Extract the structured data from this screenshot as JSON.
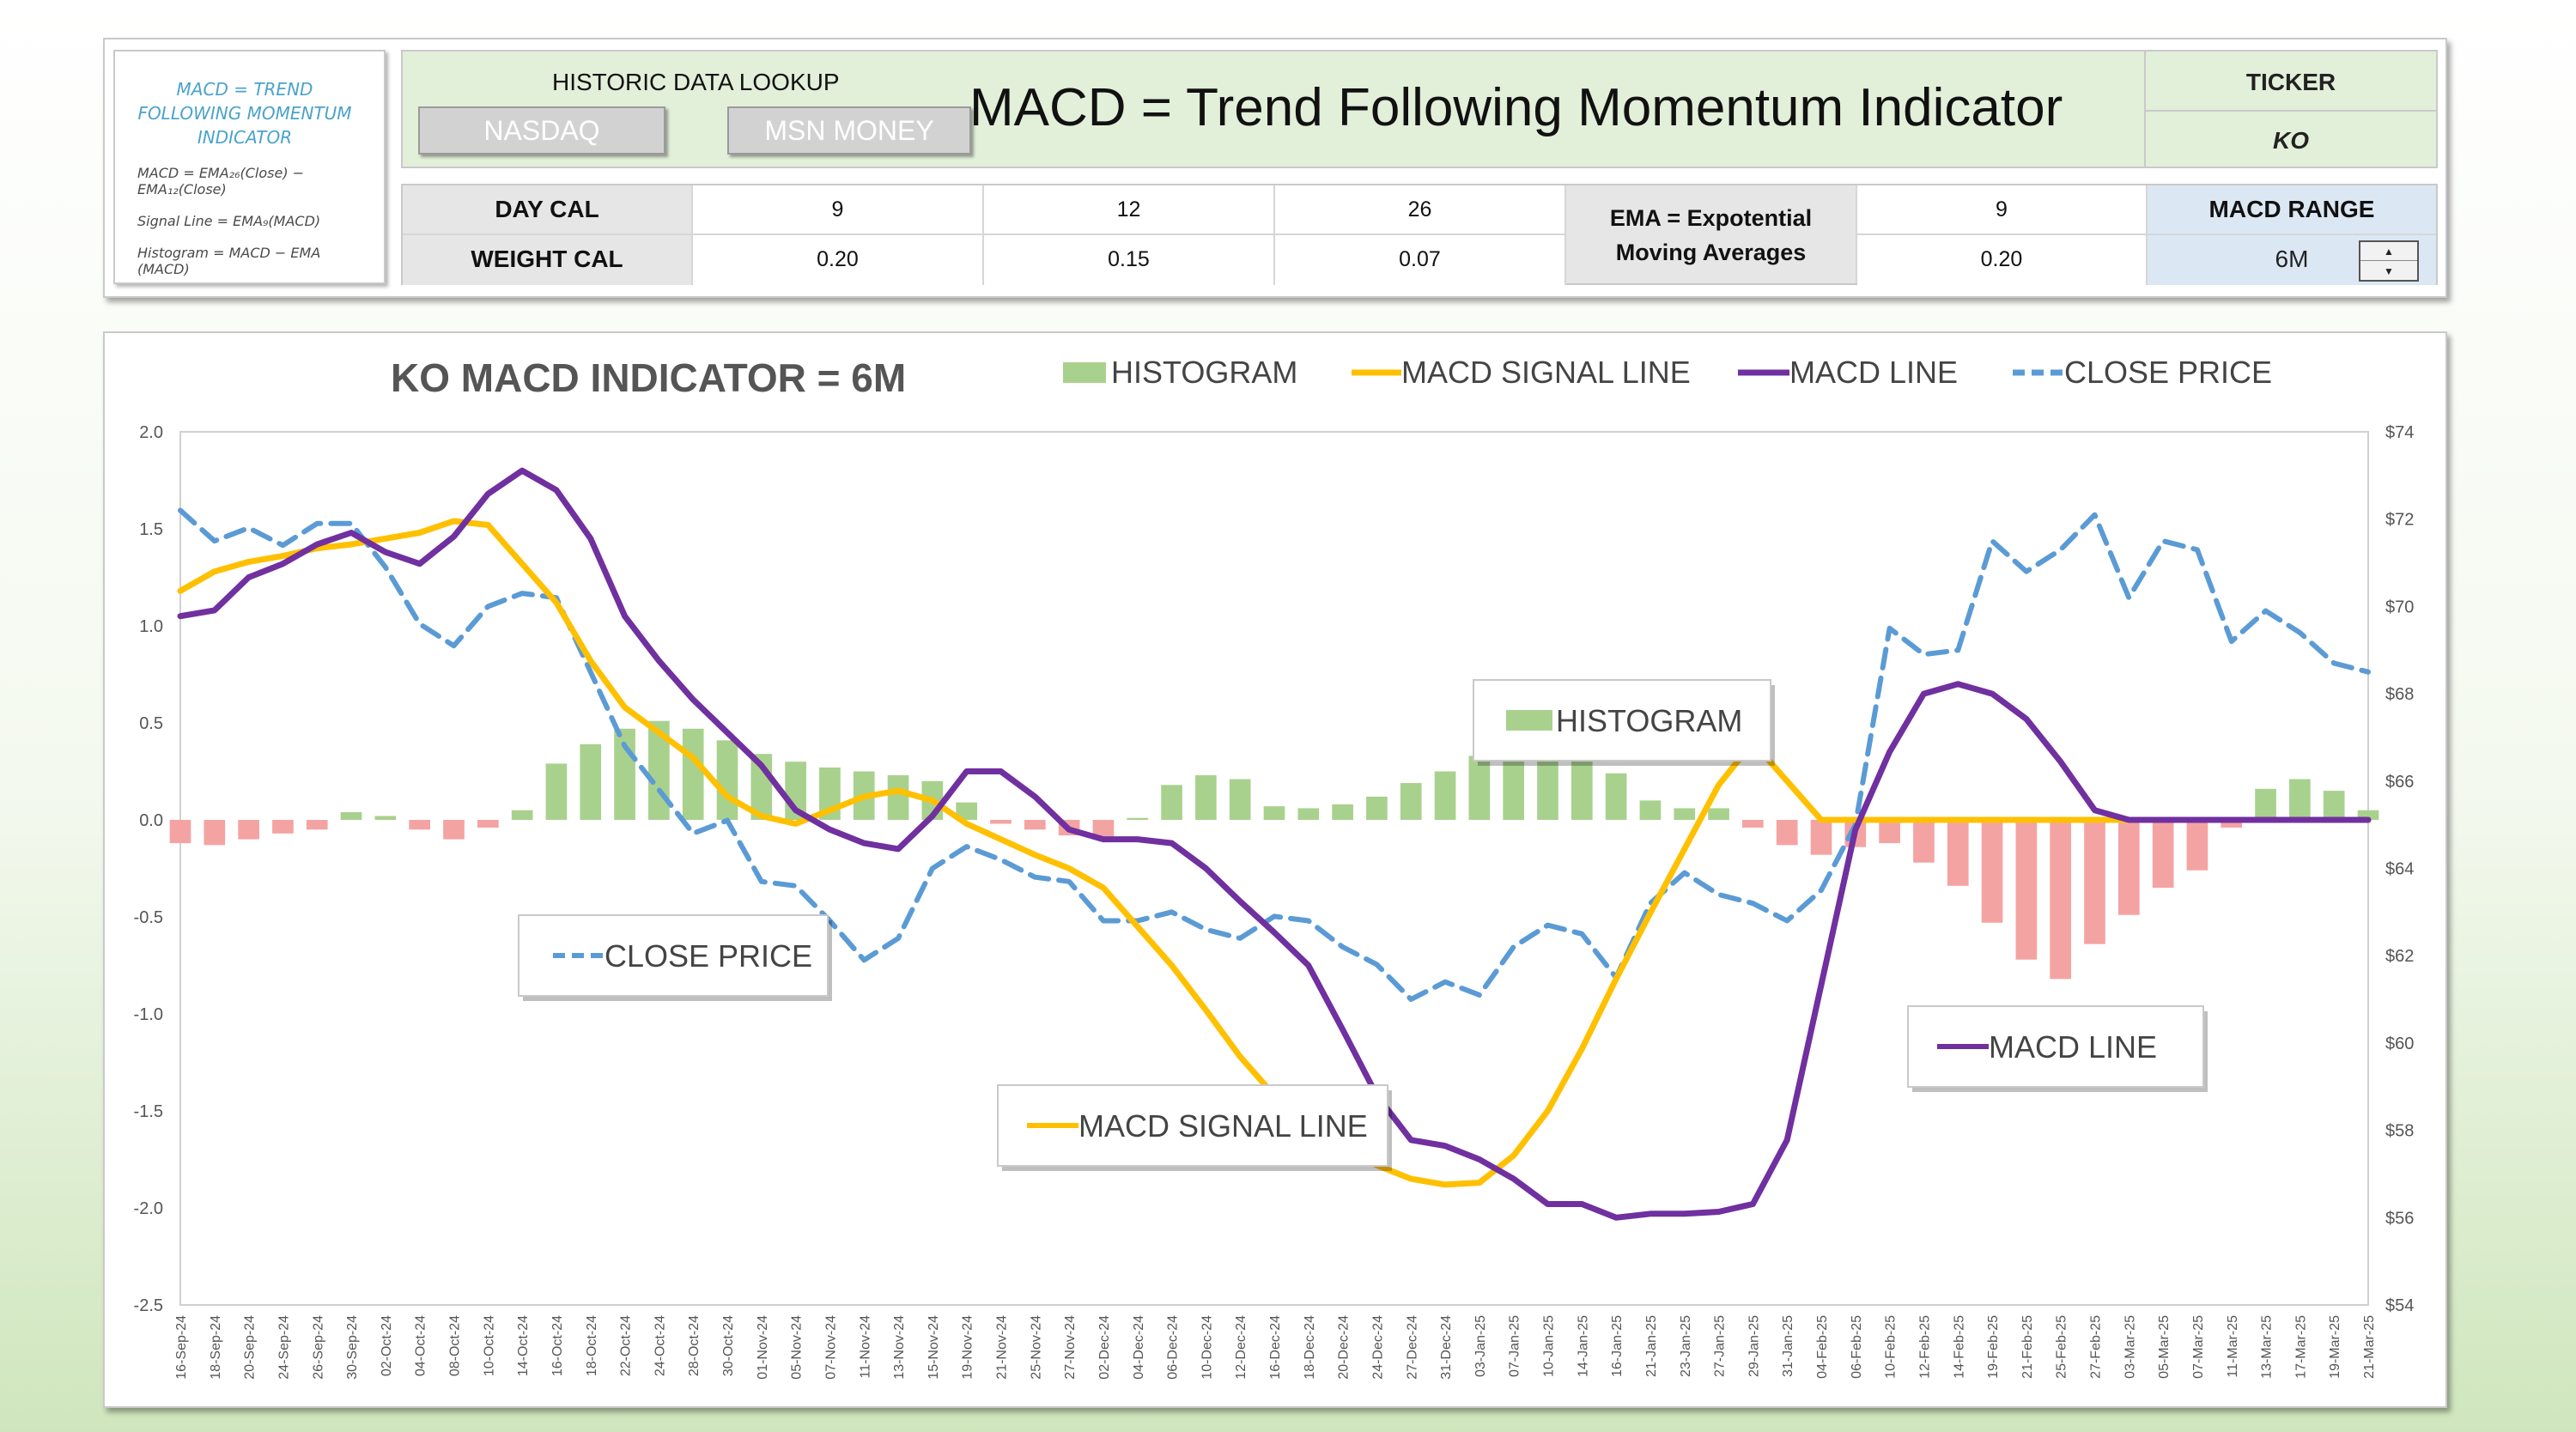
{
  "note": {
    "title": "MACD = TREND FOLLOWING MOMENTUM INDICATOR",
    "lines": [
      "MACD = EMA₂₆(Close) − EMA₁₂(Close)",
      "Signal Line = EMA₉(MACD)",
      "Histogram = MACD − EMA (MACD)"
    ]
  },
  "header": {
    "lookup_label": "HISTORIC DATA LOOKUP",
    "nasdaq_label": "NASDAQ",
    "msn_label": "MSN MONEY",
    "title": "MACD = Trend Following Momentum Indicator",
    "ticker_label": "TICKER",
    "ticker_value": "KO"
  },
  "params": {
    "day_cal_label": "DAY CAL",
    "weight_cal_label": "WEIGHT CAL",
    "day_values": [
      "9",
      "12",
      "26"
    ],
    "weight_values": [
      "0.20",
      "0.15",
      "0.07"
    ],
    "ema_label": "EMA = Expotential Moving Averages",
    "ema_day": "9",
    "ema_weight": "0.20",
    "macd_range_label": "MACD RANGE",
    "macd_range_value": "6M"
  },
  "colors": {
    "histogram_pos": "#a9d18e",
    "histogram_neg": "#f4a3a3",
    "signal": "#ffc000",
    "macd": "#7030a0",
    "close": "#5b9bd5"
  },
  "chart_data": {
    "type": "line",
    "title": "KO MACD INDICATOR = 6M",
    "legend": [
      "HISTOGRAM",
      "MACD SIGNAL LINE",
      "MACD LINE",
      "CLOSE PRICE"
    ],
    "legend_position": "top",
    "callouts": {
      "histogram": "HISTOGRAM",
      "close": "CLOSE PRICE",
      "signal": "MACD SIGNAL LINE",
      "macd": "MACD LINE"
    },
    "y_left": {
      "min": -2.5,
      "max": 2.0,
      "ticks": [
        "2.0",
        "1.5",
        "1.0",
        "0.5",
        "0.0",
        "-0.5",
        "-1.0",
        "-1.5",
        "-2.0",
        "-2.5"
      ]
    },
    "y_right": {
      "min": 54,
      "max": 74,
      "ticks": [
        "$74",
        "$72",
        "$70",
        "$68",
        "$66",
        "$64",
        "$62",
        "$60",
        "$58",
        "$56",
        "$54"
      ]
    },
    "x_labels": [
      "16-Sep-24",
      "18-Sep-24",
      "20-Sep-24",
      "24-Sep-24",
      "26-Sep-24",
      "30-Sep-24",
      "02-Oct-24",
      "04-Oct-24",
      "08-Oct-24",
      "10-Oct-24",
      "14-Oct-24",
      "16-Oct-24",
      "18-Oct-24",
      "22-Oct-24",
      "24-Oct-24",
      "28-Oct-24",
      "30-Oct-24",
      "01-Nov-24",
      "05-Nov-24",
      "07-Nov-24",
      "11-Nov-24",
      "13-Nov-24",
      "15-Nov-24",
      "19-Nov-24",
      "21-Nov-24",
      "25-Nov-24",
      "27-Nov-24",
      "02-Dec-24",
      "04-Dec-24",
      "06-Dec-24",
      "10-Dec-24",
      "12-Dec-24",
      "16-Dec-24",
      "18-Dec-24",
      "20-Dec-24",
      "24-Dec-24",
      "27-Dec-24",
      "31-Dec-24",
      "03-Jan-25",
      "07-Jan-25",
      "10-Jan-25",
      "14-Jan-25",
      "16-Jan-25",
      "21-Jan-25",
      "23-Jan-25",
      "27-Jan-25",
      "29-Jan-25",
      "31-Jan-25",
      "04-Feb-25",
      "06-Feb-25",
      "10-Feb-25",
      "12-Feb-25",
      "14-Feb-25",
      "19-Feb-25",
      "21-Feb-25",
      "25-Feb-25",
      "27-Feb-25",
      "03-Mar-25",
      "05-Mar-25",
      "07-Mar-25",
      "11-Mar-25",
      "13-Mar-25",
      "17-Mar-25",
      "19-Mar-25",
      "21-Mar-25"
    ],
    "macd": [
      1.05,
      1.08,
      1.25,
      1.32,
      1.42,
      1.48,
      1.38,
      1.32,
      1.46,
      1.68,
      1.8,
      1.7,
      1.45,
      1.05,
      0.82,
      0.62,
      0.45,
      0.28,
      0.05,
      -0.05,
      -0.12,
      -0.15,
      0.02,
      0.25,
      0.25,
      0.12,
      -0.05,
      -0.1,
      -0.1,
      -0.12,
      -0.25,
      -0.42,
      -0.58,
      -0.75,
      -1.08,
      -1.42,
      -1.65,
      -1.68,
      -1.75,
      -1.85,
      -1.98,
      -1.98,
      -2.05,
      -2.03,
      -2.03,
      -2.02,
      -1.98,
      -1.65,
      -0.85,
      -0.05,
      0.35,
      0.65,
      0.7,
      0.65,
      0.52,
      0.3,
      0.05,
      0.0,
      0.0,
      0.0,
      0.0,
      0.0,
      0.0,
      0.0,
      0.0
    ],
    "signal": [
      1.18,
      1.28,
      1.33,
      1.36,
      1.4,
      1.42,
      1.45,
      1.48,
      1.54,
      1.52,
      1.32,
      1.12,
      0.82,
      0.58,
      0.45,
      0.32,
      0.12,
      0.02,
      -0.02,
      0.05,
      0.12,
      0.15,
      0.1,
      -0.02,
      -0.1,
      -0.18,
      -0.25,
      -0.35,
      -0.55,
      -0.75,
      -0.98,
      -1.22,
      -1.42,
      -1.58,
      -1.7,
      -1.78,
      -1.85,
      -1.88,
      -1.87,
      -1.73,
      -1.5,
      -1.18,
      -0.82,
      -0.48,
      -0.15,
      0.18,
      0.4,
      0.2,
      0.0,
      0.0,
      0.0,
      0.0,
      0.0,
      0.0,
      0.0,
      0.0,
      0.0,
      0.0,
      0.0,
      0.0,
      0.0,
      0.0,
      0.0,
      0.0,
      0.0
    ],
    "close": [
      72.2,
      71.5,
      71.8,
      71.4,
      71.9,
      71.9,
      70.9,
      69.6,
      69.1,
      70.0,
      70.3,
      70.2,
      68.5,
      66.8,
      65.8,
      64.8,
      65.1,
      63.7,
      63.6,
      62.8,
      61.9,
      62.4,
      64.0,
      64.5,
      64.2,
      63.8,
      63.7,
      62.8,
      62.8,
      63.0,
      62.6,
      62.4,
      62.9,
      62.8,
      62.2,
      61.8,
      61.0,
      61.4,
      61.1,
      62.2,
      62.7,
      62.5,
      61.5,
      63.2,
      63.9,
      63.4,
      63.2,
      62.8,
      63.5,
      65.0,
      69.5,
      68.9,
      69.0,
      71.5,
      70.8,
      71.3,
      72.1,
      70.2,
      71.5,
      71.3,
      69.2,
      69.9,
      69.4,
      68.7,
      68.5
    ],
    "histogram": [
      -0.12,
      -0.13,
      -0.1,
      -0.07,
      -0.05,
      0.04,
      0.02,
      -0.05,
      -0.1,
      -0.04,
      0.05,
      0.29,
      0.39,
      0.47,
      0.51,
      0.47,
      0.41,
      0.34,
      0.3,
      0.27,
      0.25,
      0.23,
      0.2,
      0.09,
      -0.02,
      -0.05,
      -0.08,
      -0.1,
      0.01,
      0.18,
      0.23,
      0.21,
      0.07,
      0.06,
      0.08,
      0.12,
      0.19,
      0.25,
      0.33,
      0.32,
      0.34,
      0.31,
      0.24,
      0.1,
      0.06,
      0.06,
      -0.04,
      -0.13,
      -0.18,
      -0.14,
      -0.12,
      -0.22,
      -0.34,
      -0.53,
      -0.72,
      -0.82,
      -0.64,
      -0.49,
      -0.35,
      -0.26,
      -0.04,
      0.16,
      0.21,
      0.15,
      0.05
    ]
  }
}
